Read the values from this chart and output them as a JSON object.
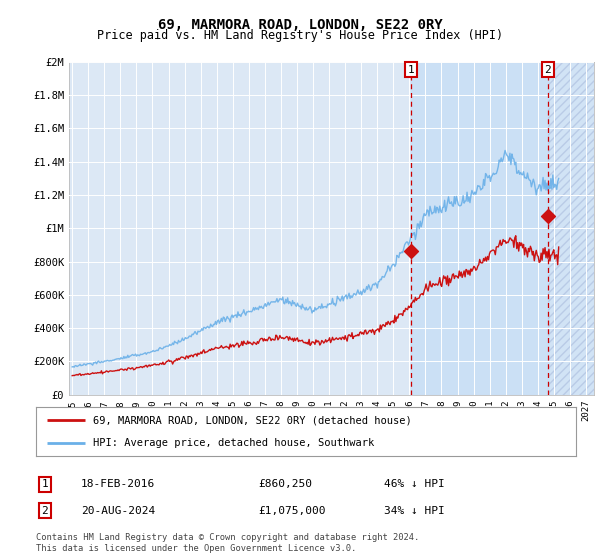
{
  "title": "69, MARMORA ROAD, LONDON, SE22 0RY",
  "subtitle": "Price paid vs. HM Land Registry's House Price Index (HPI)",
  "hpi_color": "#6ab0e8",
  "price_color": "#cc1111",
  "background_color": "#ffffff",
  "plot_bg_color": "#dce8f5",
  "ylim": [
    0,
    2000000
  ],
  "yticks": [
    0,
    200000,
    400000,
    600000,
    800000,
    1000000,
    1200000,
    1400000,
    1600000,
    1800000,
    2000000
  ],
  "ytick_labels": [
    "£0",
    "£200K",
    "£400K",
    "£600K",
    "£800K",
    "£1M",
    "£1.2M",
    "£1.4M",
    "£1.6M",
    "£1.8M",
    "£2M"
  ],
  "xlim_start": 1994.8,
  "xlim_end": 2027.5,
  "xtick_years": [
    1995,
    1996,
    1997,
    1998,
    1999,
    2000,
    2001,
    2002,
    2003,
    2004,
    2005,
    2006,
    2007,
    2008,
    2009,
    2010,
    2011,
    2012,
    2013,
    2014,
    2015,
    2016,
    2017,
    2018,
    2019,
    2020,
    2021,
    2022,
    2023,
    2024,
    2025,
    2026,
    2027
  ],
  "transaction1_date": 2016.12,
  "transaction1_price": 860250,
  "transaction1_label": "1",
  "transaction2_date": 2024.62,
  "transaction2_price": 1075000,
  "transaction2_label": "2",
  "legend_line1": "69, MARMORA ROAD, LONDON, SE22 0RY (detached house)",
  "legend_line2": "HPI: Average price, detached house, Southwark",
  "note1_label": "1",
  "note1_date": "18-FEB-2016",
  "note1_price": "£860,250",
  "note1_pct": "46% ↓ HPI",
  "note2_label": "2",
  "note2_date": "20-AUG-2024",
  "note2_price": "£1,075,000",
  "note2_pct": "34% ↓ HPI",
  "footer": "Contains HM Land Registry data © Crown copyright and database right 2024.\nThis data is licensed under the Open Government Licence v3.0."
}
